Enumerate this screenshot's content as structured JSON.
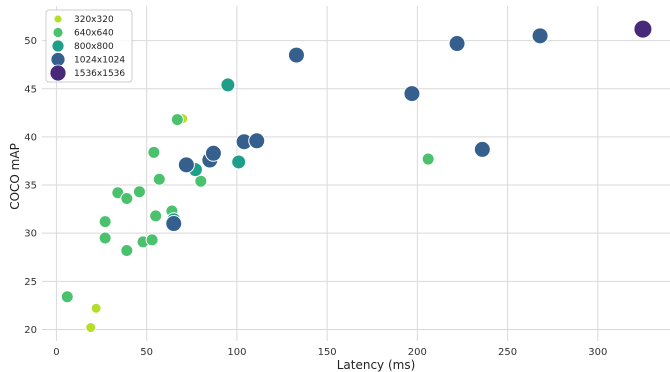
{
  "chart_data": {
    "type": "scatter",
    "xlabel": "Latency (ms)",
    "ylabel": "COCO mAP",
    "xlim": [
      -8,
      340
    ],
    "ylim": [
      18.8,
      53.6
    ],
    "xticks": [
      0,
      50,
      100,
      150,
      200,
      250,
      300
    ],
    "yticks": [
      20,
      25,
      30,
      35,
      40,
      45,
      50
    ],
    "grid": true,
    "legend_position": "top-left",
    "series": [
      {
        "name": "320x320",
        "color": "#b5de2b",
        "size": 5,
        "points": [
          {
            "x": 19,
            "y": 20.2
          },
          {
            "x": 22,
            "y": 22.2
          },
          {
            "x": 70,
            "y": 41.9
          }
        ]
      },
      {
        "name": "640x640",
        "color": "#4ac16d",
        "size": 6,
        "points": [
          {
            "x": 6,
            "y": 23.4
          },
          {
            "x": 27,
            "y": 29.5
          },
          {
            "x": 27,
            "y": 31.2
          },
          {
            "x": 34,
            "y": 34.2
          },
          {
            "x": 39,
            "y": 33.6
          },
          {
            "x": 39,
            "y": 28.2
          },
          {
            "x": 46,
            "y": 34.3
          },
          {
            "x": 48,
            "y": 29.1
          },
          {
            "x": 53,
            "y": 29.3
          },
          {
            "x": 54,
            "y": 38.4
          },
          {
            "x": 55,
            "y": 31.8
          },
          {
            "x": 57,
            "y": 35.6
          },
          {
            "x": 64,
            "y": 32.3
          },
          {
            "x": 67,
            "y": 41.8
          },
          {
            "x": 80,
            "y": 35.4
          },
          {
            "x": 206,
            "y": 37.7
          }
        ]
      },
      {
        "name": "800x800",
        "color": "#1f9e89",
        "size": 7,
        "points": [
          {
            "x": 65,
            "y": 31.4
          },
          {
            "x": 77,
            "y": 36.6
          },
          {
            "x": 95,
            "y": 45.4
          },
          {
            "x": 101,
            "y": 37.4
          }
        ]
      },
      {
        "name": "1024x1024",
        "color": "#355f8d",
        "size": 8,
        "points": [
          {
            "x": 65,
            "y": 31.0
          },
          {
            "x": 72,
            "y": 37.1
          },
          {
            "x": 85,
            "y": 37.6
          },
          {
            "x": 87,
            "y": 38.3
          },
          {
            "x": 104,
            "y": 39.5
          },
          {
            "x": 111,
            "y": 39.6
          },
          {
            "x": 133,
            "y": 48.5
          },
          {
            "x": 197,
            "y": 44.5
          },
          {
            "x": 222,
            "y": 49.7
          },
          {
            "x": 236,
            "y": 38.7
          },
          {
            "x": 268,
            "y": 50.5
          }
        ]
      },
      {
        "name": "1536x1536",
        "color": "#482878",
        "size": 9,
        "points": [
          {
            "x": 325,
            "y": 51.2
          }
        ]
      }
    ]
  }
}
